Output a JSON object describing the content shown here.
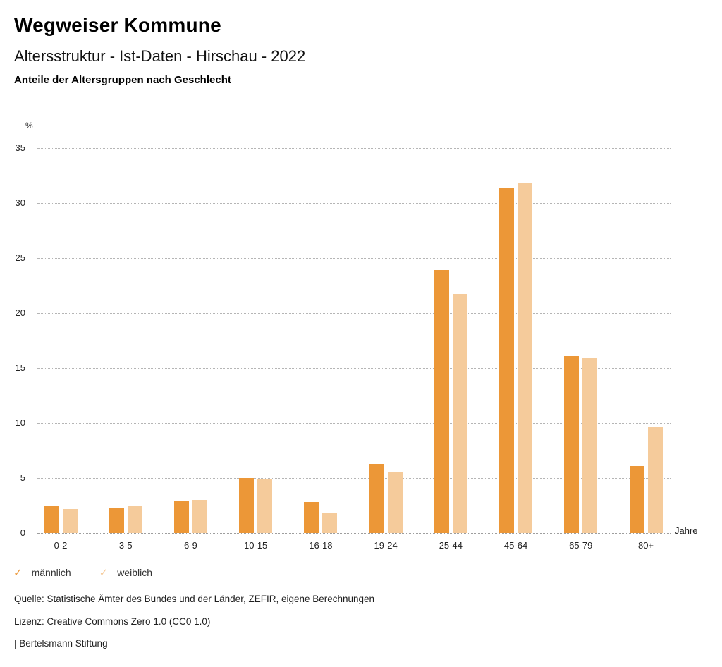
{
  "header": {
    "title": "Wegweiser Kommune",
    "subtitle": "Altersstruktur - Ist-Daten - Hirschau - 2022",
    "caption": "Anteile der Altersgruppen nach Geschlecht"
  },
  "legend": {
    "items": [
      {
        "label": "männlich",
        "checked": true,
        "color": "#EC9737",
        "icon": "check-icon"
      },
      {
        "label": "weiblich",
        "checked": true,
        "color": "#F5CB9B",
        "icon": "check-icon"
      }
    ],
    "check_glyph": "✓"
  },
  "footer": {
    "source": "Quelle: Statistische Ämter des Bundes und der Länder, ZEFIR, eigene Berechnungen",
    "license": "Lizenz: Creative Commons Zero 1.0 (CC0 1.0)",
    "brand": "| Bertelsmann Stiftung"
  },
  "chart_data": {
    "type": "bar",
    "title": "Anteile der Altersgruppen nach Geschlecht",
    "unit_label": "%",
    "xlabel": "Jahre",
    "ylabel": "%",
    "categories": [
      "0-2",
      "3-5",
      "6-9",
      "10-15",
      "16-18",
      "19-24",
      "25-44",
      "45-64",
      "65-79",
      "80+"
    ],
    "series": [
      {
        "name": "männlich",
        "color": "#EC9737",
        "values": [
          2.5,
          2.3,
          2.9,
          5.0,
          2.8,
          6.3,
          23.9,
          31.4,
          16.1,
          6.1
        ]
      },
      {
        "name": "weiblich",
        "color": "#F5CB9B",
        "values": [
          2.2,
          2.5,
          3.0,
          4.9,
          1.8,
          5.6,
          21.7,
          31.8,
          15.9,
          9.7
        ]
      }
    ],
    "ylim": [
      0,
      35
    ],
    "ytick_step": 5,
    "yticks": [
      0,
      5,
      10,
      15,
      20,
      25,
      30,
      35
    ],
    "grid": "horizontal-dotted",
    "legend_position": "bottom-left"
  }
}
